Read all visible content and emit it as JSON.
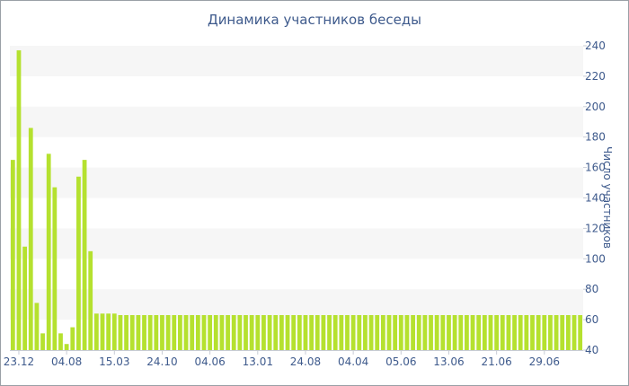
{
  "chart_data": {
    "type": "bar",
    "title": "Динамика участников беседы",
    "xlabel": "",
    "ylabel": "Число участников",
    "ylim": [
      40,
      240
    ],
    "yticks": [
      40,
      60,
      80,
      100,
      120,
      140,
      160,
      180,
      200,
      220,
      240
    ],
    "y_axis_position": "right",
    "grid": "horizontal alternating bands",
    "x_tick_labels": [
      {
        "label": "23.12",
        "index": 1
      },
      {
        "label": "04.08",
        "index": 9
      },
      {
        "label": "15.03",
        "index": 17
      },
      {
        "label": "24.10",
        "index": 25
      },
      {
        "label": "04.06",
        "index": 33
      },
      {
        "label": "13.01",
        "index": 41
      },
      {
        "label": "24.08",
        "index": 49
      },
      {
        "label": "04.04",
        "index": 57
      },
      {
        "label": "05.06",
        "index": 65
      },
      {
        "label": "13.06",
        "index": 73
      },
      {
        "label": "21.06",
        "index": 81
      },
      {
        "label": "29.06",
        "index": 89
      }
    ],
    "values": [
      165,
      237,
      108,
      186,
      71,
      51,
      169,
      147,
      51,
      44,
      55,
      154,
      165,
      105,
      64,
      64,
      64,
      64,
      63,
      63,
      63,
      63,
      63,
      63,
      63,
      63,
      63,
      63,
      63,
      63,
      63,
      63,
      63,
      63,
      63,
      63,
      63,
      63,
      63,
      63,
      63,
      63,
      63,
      63,
      63,
      63,
      63,
      63,
      63,
      63,
      63,
      63,
      63,
      63,
      63,
      63,
      63,
      63,
      63,
      63,
      63,
      63,
      63,
      63,
      63,
      63,
      63,
      63,
      63,
      63,
      63,
      63,
      63,
      63,
      63,
      63,
      63,
      63,
      63,
      63,
      63,
      63,
      63,
      63,
      63,
      63,
      63,
      63,
      63,
      63,
      63,
      63,
      63,
      63,
      63,
      63
    ],
    "colors": {
      "bar": "#b5e12f",
      "band": "#f6f6f6",
      "axis": "#c8ccd6",
      "text": "#3e5a8c"
    }
  }
}
